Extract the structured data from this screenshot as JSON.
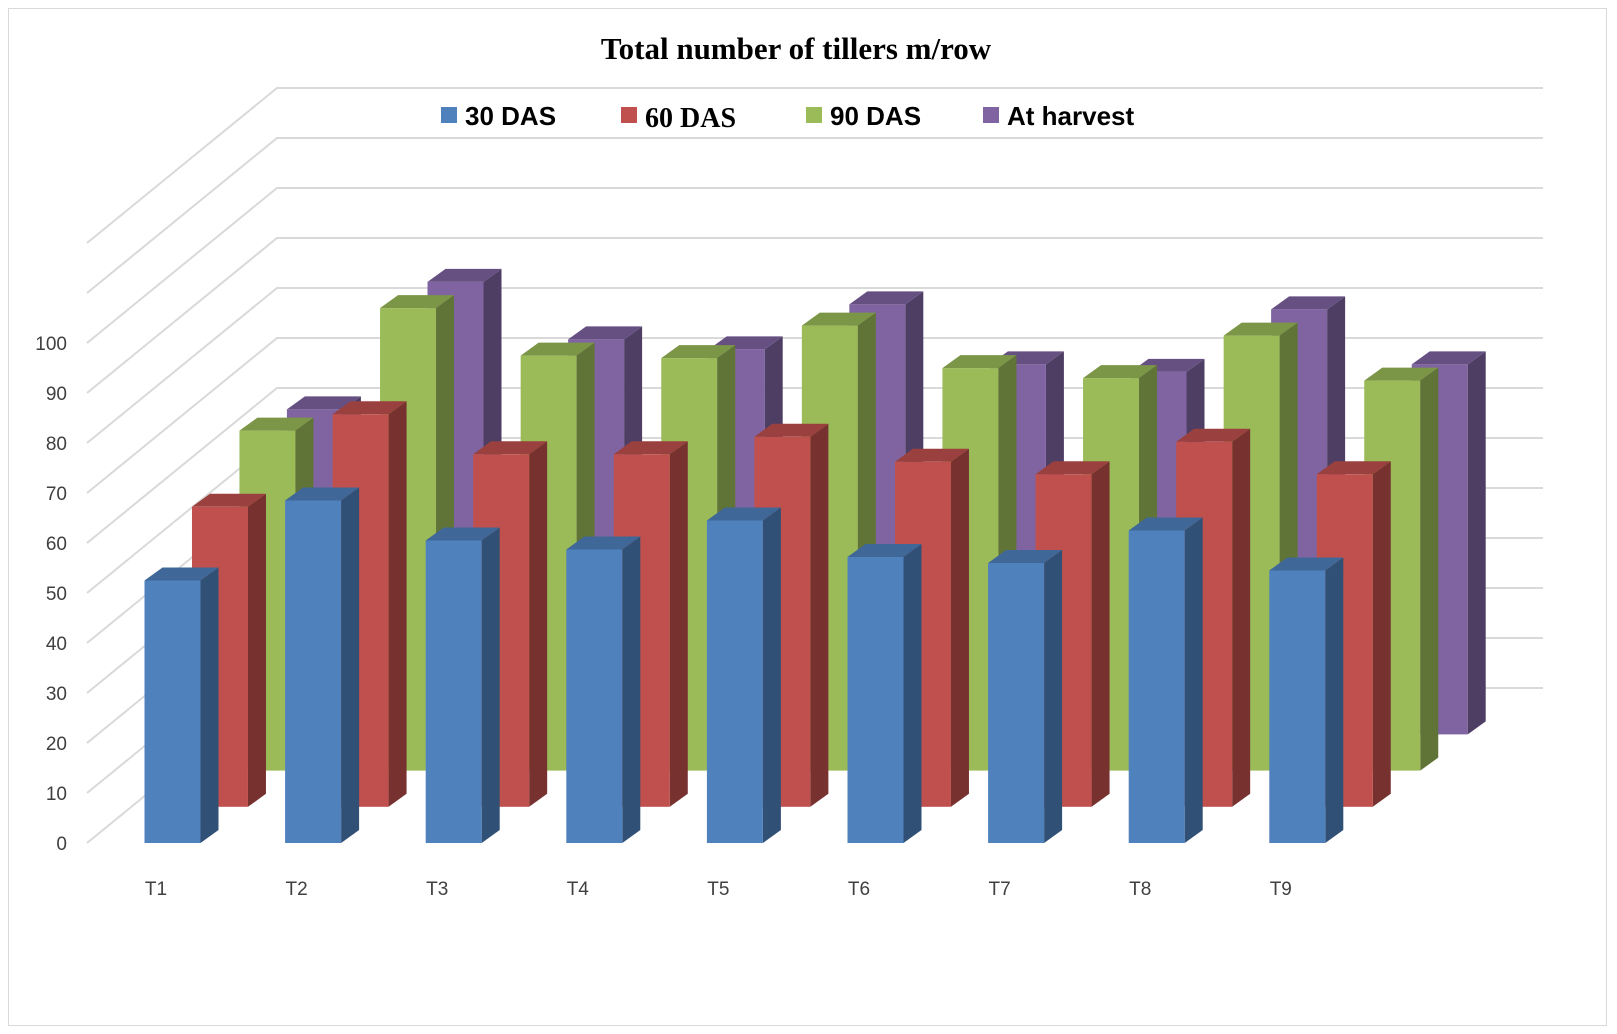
{
  "chart_data": {
    "type": "bar",
    "title": "Total number of tillers m/row",
    "xlabel": "",
    "ylabel": "",
    "ylim": [
      0,
      100
    ],
    "yticks": [
      "0",
      "10",
      "20",
      "30",
      "40",
      "50",
      "60",
      "70",
      "80",
      "90",
      "100"
    ],
    "categories": [
      "T1",
      "T2",
      "T3",
      "T4",
      "T5",
      "T6",
      "T7",
      "T8",
      "T9"
    ],
    "series": [
      {
        "name": "30 DAS",
        "color": "#4f81bd",
        "values": [
          52.5,
          68.5,
          60.5,
          58.7,
          64.5,
          57.2,
          56,
          62.5,
          54.5
        ]
      },
      {
        "name": "60 DAS",
        "color": "#c0504d",
        "values": [
          60,
          78.5,
          70.5,
          70.5,
          74,
          69,
          66.5,
          73,
          66.5
        ]
      },
      {
        "name": "90 DAS",
        "color": "#9bbb59",
        "values": [
          68,
          92.5,
          83,
          82.5,
          89,
          80.5,
          78.5,
          87,
          78
        ]
      },
      {
        "name": "At harvest",
        "color": "#8064a2",
        "values": [
          65,
          90.5,
          79,
          77,
          86,
          74,
          72.5,
          85,
          74
        ]
      }
    ],
    "legend_position": "top",
    "grid": true,
    "style": "3d-clustered-column"
  }
}
